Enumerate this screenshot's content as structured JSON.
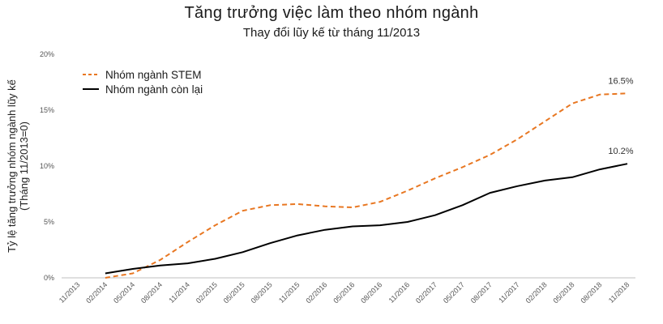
{
  "chart_data": {
    "type": "line",
    "title": "Tăng trưởng việc làm theo nhóm ngành",
    "subtitle": "Thay đổi lũy kế từ tháng 11/2013",
    "ylabel_line1": "Tỷ lệ tăng trưởng nhóm ngành lũy kế",
    "ylabel_line2": "(Tháng 11/2013=0)",
    "xlabel": "",
    "categories": [
      "11/2013",
      "02/2014",
      "05/2014",
      "08/2014",
      "11/2014",
      "02/2015",
      "05/2015",
      "08/2015",
      "11/2015",
      "02/2016",
      "05/2016",
      "08/2016",
      "11/2016",
      "02/2017",
      "05/2017",
      "08/2017",
      "11/2017",
      "02/2018",
      "05/2018",
      "08/2018",
      "11/2018"
    ],
    "yticks": [
      "0%",
      "5%",
      "10%",
      "15%",
      "20%"
    ],
    "ylim": [
      0,
      20
    ],
    "grid": false,
    "legend_position": "top-left",
    "series": [
      {
        "name": "Nhóm ngành STEM",
        "style": "dashed",
        "color": "#e87722",
        "values": [
          null,
          0.0,
          0.4,
          1.6,
          3.2,
          4.7,
          6.0,
          6.5,
          6.6,
          6.4,
          6.3,
          6.8,
          7.8,
          8.9,
          9.9,
          11.0,
          12.4,
          14.0,
          15.6,
          16.4,
          16.5
        ],
        "end_label": "16.5%"
      },
      {
        "name": "Nhóm ngành còn lại",
        "style": "solid",
        "color": "#000000",
        "values": [
          null,
          0.4,
          0.8,
          1.1,
          1.3,
          1.7,
          2.3,
          3.1,
          3.8,
          4.3,
          4.6,
          4.7,
          5.0,
          5.6,
          6.5,
          7.6,
          8.2,
          8.7,
          9.0,
          9.7,
          10.2
        ],
        "end_label": "10.2%"
      }
    ]
  }
}
